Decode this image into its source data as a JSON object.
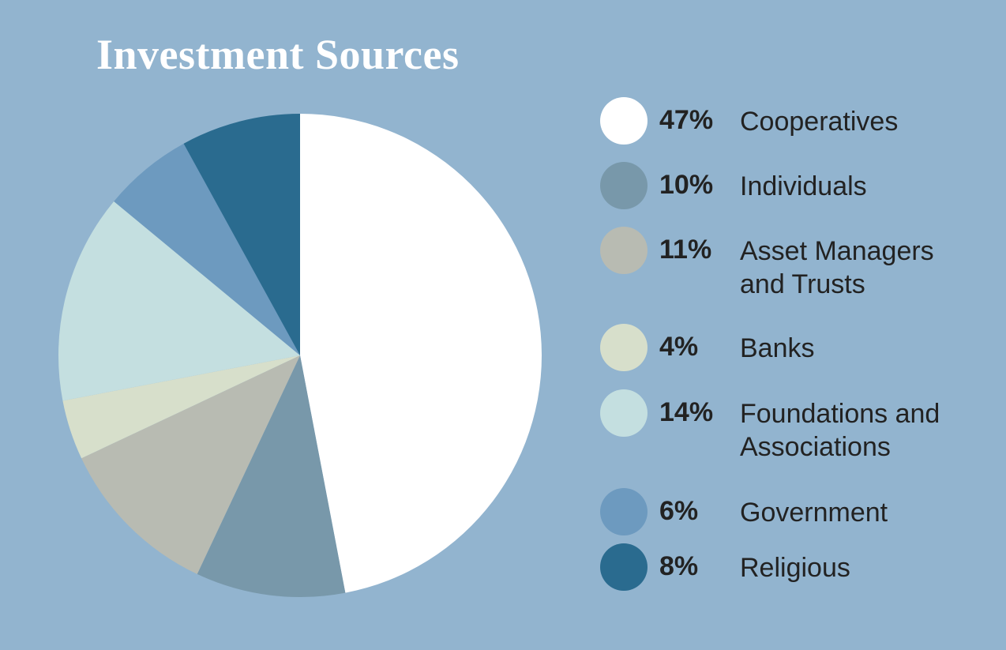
{
  "chart_data": {
    "type": "pie",
    "title": "Investment Sources",
    "start": "top",
    "direction": "clockwise",
    "slices": [
      {
        "label": "Cooperatives",
        "value": 47,
        "display": "47%",
        "color": "#ffffff"
      },
      {
        "label": "Individuals",
        "value": 10,
        "display": "10%",
        "color": "#7898aa"
      },
      {
        "label": "Asset Managers and Trusts",
        "value": 11,
        "display": "11%",
        "color": "#b8bbb2"
      },
      {
        "label": "Banks",
        "value": 4,
        "display": "4%",
        "color": "#d7dfcb"
      },
      {
        "label": "Foundations and Associations",
        "value": 14,
        "display": "14%",
        "color": "#c4dfe0"
      },
      {
        "label": "Government",
        "value": 6,
        "display": "6%",
        "color": "#6d9abf"
      },
      {
        "label": "Religious",
        "value": 8,
        "display": "8%",
        "color": "#2a6b8f"
      }
    ],
    "legend_position": "right"
  }
}
